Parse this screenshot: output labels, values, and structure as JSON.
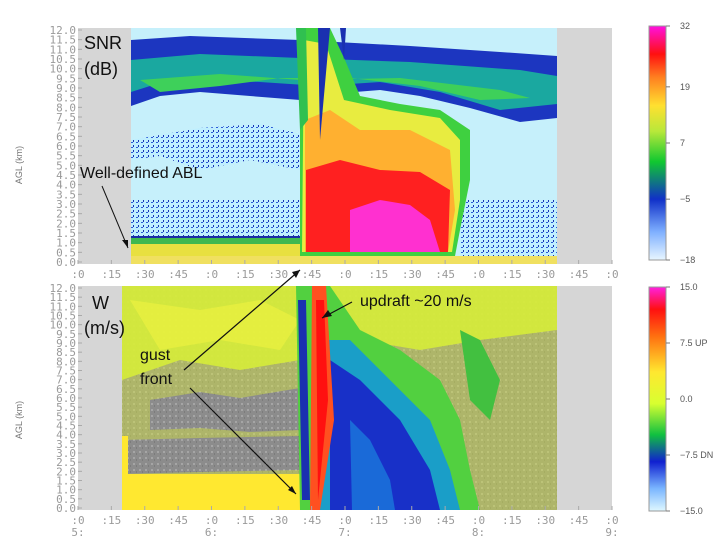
{
  "chart_data": [
    {
      "type": "heatmap",
      "title": "SNR",
      "units": "(dB)",
      "ylabel": "AGL (km)",
      "y_ticks": [
        "0.0",
        "0.5",
        "1.0",
        "1.5",
        "2.0",
        "2.5",
        "3.0",
        "3.5",
        "4.0",
        "4.5",
        "5.0",
        "5.5",
        "6.0",
        "6.5",
        "7.0",
        "7.5",
        "8.0",
        "8.5",
        "9.0",
        "9.5",
        "10.0",
        "10.5",
        "11.0",
        "11.5",
        "12.0"
      ],
      "x_ticks": [
        ":0",
        ":15",
        ":30",
        ":45",
        ":0",
        ":15",
        ":30",
        ":45",
        ":0",
        ":15",
        ":30",
        ":45",
        ":0",
        ":15",
        ":30",
        ":45",
        ":0"
      ],
      "x_hours": [
        "5:",
        "6:",
        "7:",
        "8:",
        "9:"
      ],
      "ylim": [
        0,
        12
      ],
      "colorbar": {
        "min": -18,
        "max": 32,
        "labels": [
          "32",
          "19",
          "7",
          "−5",
          "−18"
        ],
        "label_values": [
          32,
          19,
          7,
          -5,
          -18
        ]
      },
      "annotations": [
        {
          "text": "Well-defined ABL"
        }
      ]
    },
    {
      "type": "heatmap",
      "title": "W",
      "units": "(m/s)",
      "ylabel": "AGL (km)",
      "y_ticks": [
        "0.0",
        "0.5",
        "1.0",
        "1.5",
        "2.0",
        "2.5",
        "3.0",
        "3.5",
        "4.0",
        "4.5",
        "5.0",
        "5.5",
        "6.0",
        "6.5",
        "7.0",
        "7.5",
        "8.0",
        "8.5",
        "9.0",
        "9.5",
        "10.0",
        "10.5",
        "11.0",
        "11.5",
        "12.0"
      ],
      "x_ticks": [
        ":0",
        ":15",
        ":30",
        ":45",
        ":0",
        ":15",
        ":30",
        ":45",
        ":0",
        ":15",
        ":30",
        ":45",
        ":0",
        ":15",
        ":30",
        ":45",
        ":0"
      ],
      "x_hours": [
        "5:",
        "6:",
        "7:",
        "8:",
        "9:"
      ],
      "ylim": [
        0,
        12
      ],
      "colorbar": {
        "min": -15,
        "max": 15,
        "labels": [
          "15.0",
          "7.5 UP",
          "0.0",
          "−7.5 DN",
          "−15.0"
        ],
        "label_values": [
          15,
          7.5,
          0,
          -7.5,
          -15
        ]
      },
      "annotations": [
        {
          "text": "updraft ~20 m/s"
        },
        {
          "text": "gust"
        },
        {
          "text": "front"
        }
      ]
    }
  ]
}
